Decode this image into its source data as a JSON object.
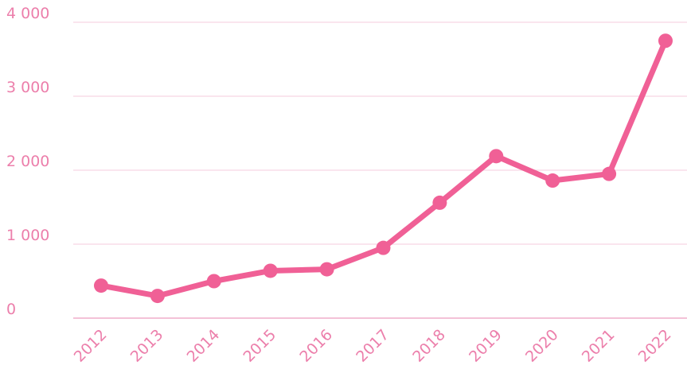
{
  "chart_data": {
    "type": "line",
    "categories": [
      "2012",
      "2013",
      "2014",
      "2015",
      "2016",
      "2017",
      "2018",
      "2019",
      "2020",
      "2021",
      "2022"
    ],
    "series": [
      {
        "color": "#f06096",
        "values": [
          440,
          300,
          500,
          640,
          660,
          950,
          1560,
          2190,
          1860,
          1950,
          3750
        ]
      }
    ],
    "ylim": [
      0,
      4000
    ],
    "yticks": [
      0,
      {
        "value": 1000,
        "label": "1 000"
      },
      {
        "value": 2000,
        "label": "2 000"
      },
      {
        "value": 3000,
        "label": "3 000"
      },
      {
        "value": 4000,
        "label": "4 000"
      }
    ],
    "grid": true
  }
}
